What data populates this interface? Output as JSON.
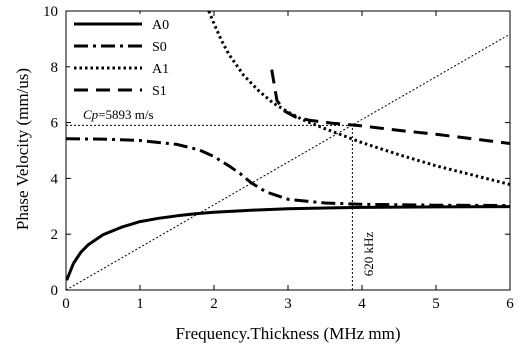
{
  "chart_data": {
    "type": "line",
    "xlabel": "Frequency.Thickness (MHz mm)",
    "ylabel": "Phase Velocity (mm/us)",
    "xlim": [
      0,
      6
    ],
    "ylim": [
      0,
      10
    ],
    "x_ticks": [
      0,
      1,
      2,
      3,
      4,
      5,
      6
    ],
    "y_ticks": [
      0,
      2,
      4,
      6,
      8,
      10
    ],
    "grid": false,
    "legend_position": "top-left",
    "series": [
      {
        "name": "A0",
        "style": "solid",
        "x": [
          0.01,
          0.1,
          0.2,
          0.3,
          0.5,
          0.75,
          1.0,
          1.25,
          1.5,
          1.75,
          2.0,
          2.5,
          3.0,
          3.5,
          4.0,
          5.0,
          6.0
        ],
        "y": [
          0.35,
          0.95,
          1.35,
          1.62,
          1.98,
          2.25,
          2.45,
          2.57,
          2.66,
          2.73,
          2.79,
          2.86,
          2.91,
          2.94,
          2.96,
          2.98,
          2.99
        ]
      },
      {
        "name": "S0",
        "style": "dash-dot",
        "x": [
          0,
          0.5,
          1.0,
          1.5,
          1.8,
          2.0,
          2.2,
          2.35,
          2.5,
          2.7,
          3.0,
          3.5,
          4.0,
          5.0,
          6.0
        ],
        "y": [
          5.42,
          5.41,
          5.36,
          5.22,
          5.02,
          4.78,
          4.45,
          4.18,
          3.85,
          3.52,
          3.25,
          3.12,
          3.07,
          3.04,
          3.03
        ]
      },
      {
        "name": "A1",
        "style": "dotted",
        "x": [
          1.93,
          2.0,
          2.1,
          2.2,
          2.4,
          2.6,
          2.8,
          3.0,
          3.2,
          3.5,
          3.8,
          4.0,
          4.5,
          5.0,
          5.5,
          6.0
        ],
        "y": [
          10.0,
          9.55,
          8.95,
          8.45,
          7.7,
          7.15,
          6.7,
          6.38,
          6.1,
          5.78,
          5.48,
          5.28,
          4.85,
          4.45,
          4.12,
          3.78
        ]
      },
      {
        "name": "S1",
        "style": "dashed",
        "x": [
          2.78,
          2.85,
          2.95,
          3.1,
          3.3,
          3.6,
          4.0,
          4.5,
          5.0,
          5.5,
          6.0
        ],
        "y": [
          7.9,
          6.8,
          6.42,
          6.2,
          6.08,
          5.98,
          5.88,
          5.72,
          5.58,
          5.42,
          5.25
        ]
      }
    ],
    "reference_lines": [
      {
        "type": "diagonal",
        "x": [
          0,
          6
        ],
        "y": [
          0,
          9.17
        ]
      },
      {
        "type": "horizontal",
        "y": 5.9,
        "x": [
          0,
          3.87
        ]
      },
      {
        "type": "vertical",
        "x": 3.87,
        "y": [
          0,
          5.9
        ]
      }
    ],
    "annotations": {
      "cp_symbol": "Cp",
      "cp_value": "=5893 m/s",
      "freq_label": "620 kHz"
    }
  }
}
